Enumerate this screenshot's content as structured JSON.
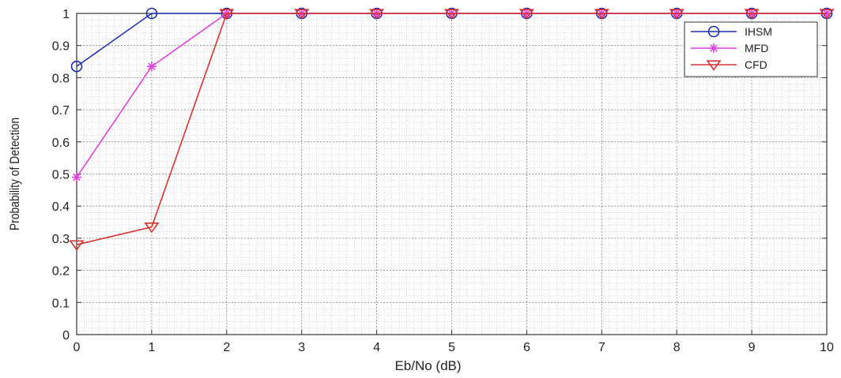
{
  "chart_data": {
    "type": "line",
    "title": "",
    "xlabel": "Eb/No (dB)",
    "ylabel": "Probability of Detection",
    "xlim": [
      0,
      10
    ],
    "ylim": [
      0,
      1
    ],
    "xticks": [
      0,
      1,
      2,
      3,
      4,
      5,
      6,
      7,
      8,
      9,
      10
    ],
    "yticks": [
      0,
      0.1,
      0.2,
      0.3,
      0.4,
      0.5,
      0.6,
      0.7,
      0.8,
      0.9,
      1
    ],
    "xtick_labels": [
      "0",
      "1",
      "2",
      "3",
      "4",
      "5",
      "6",
      "7",
      "8",
      "9",
      "10"
    ],
    "ytick_labels": [
      "0",
      "0.1",
      "0.2",
      "0.3",
      "0.4",
      "0.5",
      "0.6",
      "0.7",
      "0.8",
      "0.9",
      "1"
    ],
    "grid": true,
    "legend_position": "top-right",
    "x": [
      0,
      1,
      2,
      3,
      4,
      5,
      6,
      7,
      8,
      9,
      10
    ],
    "series": [
      {
        "name": "IHSM",
        "values": [
          0.835,
          1,
          1,
          1,
          1,
          1,
          1,
          1,
          1,
          1,
          1
        ],
        "color": "#1f2fb0",
        "marker": "circle"
      },
      {
        "name": "MFD",
        "values": [
          0.49,
          0.835,
          1,
          1,
          1,
          1,
          1,
          1,
          1,
          1,
          1
        ],
        "color": "#e040e0",
        "marker": "star"
      },
      {
        "name": "CFD",
        "values": [
          0.28,
          0.335,
          1,
          1,
          1,
          1,
          1,
          1,
          1,
          1,
          1
        ],
        "color": "#d93030",
        "marker": "triangle-down"
      }
    ]
  }
}
